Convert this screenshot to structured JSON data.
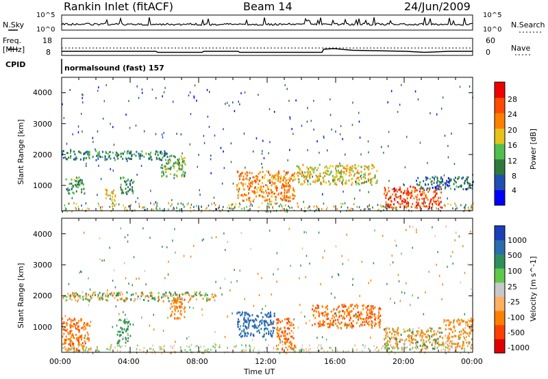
{
  "header": {
    "station": "Rankin Inlet (fitACF)",
    "beam": "Beam 14",
    "date": "24/Jun/2009"
  },
  "panels": {
    "counts": {
      "left_label": "N.Sky",
      "right_label": "N.Search",
      "left_ticks": [
        "10^5",
        "10^0"
      ],
      "right_ticks": [
        "10^5",
        "10^0"
      ]
    },
    "freq": {
      "left_label_1": "Freq.",
      "left_label_2": "[MHz]",
      "right_label": "Nave",
      "left_ticks": [
        "18",
        "8"
      ],
      "right_ticks": [
        "60",
        "0"
      ]
    },
    "cpid": {
      "label": "CPID",
      "value": "normalsound (fast) 157"
    }
  },
  "x_axis": {
    "label": "Time UT",
    "ticks": [
      "00:00",
      "04:00",
      "08:00",
      "12:00",
      "16:00",
      "20:00",
      "00:00"
    ]
  },
  "power_panel": {
    "ylabel": "Slant Range [km]",
    "yticks": [
      "4000",
      "3000",
      "2000",
      "1000"
    ],
    "colorbar_label": "Power [dB]",
    "colorbar_ticks": [
      "28",
      "24",
      "20",
      "16",
      "12",
      "8",
      "4"
    ],
    "colors": [
      "#0000ff",
      "#1f4fb0",
      "#2f7a3a",
      "#4fbf4f",
      "#e6c21a",
      "#ff8000",
      "#ff4a00",
      "#ee0000"
    ]
  },
  "velocity_panel": {
    "ylabel": "Slant Range [km]",
    "yticks": [
      "4000",
      "3000",
      "2000",
      "1000"
    ],
    "colorbar_label": "Velocity [m s^-1]",
    "colorbar_ticks": [
      "1000",
      "500",
      "100",
      "25",
      "-25",
      "-100",
      "-500",
      "-1000"
    ],
    "colors": [
      "#1b3fb8",
      "#2a6db0",
      "#2f8f5a",
      "#5fc94a",
      "#c8c8c8",
      "#ffb060",
      "#ff8000",
      "#ff4000",
      "#e00000"
    ]
  },
  "chart_data": {
    "type": "heatmap",
    "xlabel": "Time UT",
    "ylabel": "Slant Range [km]",
    "xlim_hours": [
      0,
      24
    ],
    "ylim_km": [
      180,
      4500
    ],
    "power_regions": [
      {
        "t0": 0.0,
        "t1": 6.3,
        "r0": 1850,
        "r1": 2150,
        "power_db": 10
      },
      {
        "t0": 0.2,
        "t1": 1.3,
        "r0": 750,
        "r1": 1300,
        "power_db": 12
      },
      {
        "t0": 2.5,
        "t1": 3.1,
        "r0": 500,
        "r1": 900,
        "power_db": 20
      },
      {
        "t0": 3.4,
        "t1": 4.2,
        "r0": 750,
        "r1": 1300,
        "power_db": 10
      },
      {
        "t0": 5.8,
        "t1": 7.2,
        "r0": 1300,
        "r1": 2000,
        "power_db": 14
      },
      {
        "t0": 10.2,
        "t1": 13.6,
        "r0": 500,
        "r1": 1500,
        "power_db": 22
      },
      {
        "t0": 13.6,
        "t1": 18.4,
        "r0": 1050,
        "r1": 1700,
        "power_db": 18
      },
      {
        "t0": 18.8,
        "t1": 22.2,
        "r0": 300,
        "r1": 1000,
        "power_db": 26
      },
      {
        "t0": 20.6,
        "t1": 24.0,
        "r0": 900,
        "r1": 1300,
        "power_db": 8
      }
    ],
    "velocity_regions": [
      {
        "t0": 0.0,
        "t1": 9.0,
        "r0": 1850,
        "r1": 2150,
        "velocity": 0
      },
      {
        "t0": 0.0,
        "t1": 1.6,
        "r0": 250,
        "r1": 1300,
        "velocity": -400
      },
      {
        "t0": 3.2,
        "t1": 4.0,
        "r0": 500,
        "r1": 1300,
        "velocity": 200
      },
      {
        "t0": 6.3,
        "t1": 7.2,
        "r0": 1300,
        "r1": 2000,
        "velocity": -300
      },
      {
        "t0": 10.2,
        "t1": 12.4,
        "r0": 700,
        "r1": 1500,
        "velocity": 800
      },
      {
        "t0": 12.5,
        "t1": 13.6,
        "r0": 300,
        "r1": 1300,
        "velocity": -500
      },
      {
        "t0": 14.6,
        "t1": 18.6,
        "r0": 1000,
        "r1": 1750,
        "velocity": -400
      },
      {
        "t0": 18.8,
        "t1": 22.2,
        "r0": 300,
        "r1": 1000,
        "velocity": -60
      },
      {
        "t0": 22.2,
        "t1": 24.0,
        "r0": 300,
        "r1": 1300,
        "velocity": -200
      }
    ],
    "frequency_mhz": [
      {
        "t": 0,
        "v": 10.4
      },
      {
        "t": 5.5,
        "v": 10.4
      },
      {
        "t": 5.6,
        "v": 9.8
      },
      {
        "t": 8.2,
        "v": 9.8
      },
      {
        "t": 8.3,
        "v": 10.4
      },
      {
        "t": 10.3,
        "v": 10.4
      },
      {
        "t": 10.4,
        "v": 9.8
      },
      {
        "t": 15.2,
        "v": 9.8
      },
      {
        "t": 15.3,
        "v": 11.6
      },
      {
        "t": 15.9,
        "v": 12.0
      },
      {
        "t": 17.0,
        "v": 11.0
      },
      {
        "t": 20.1,
        "v": 10.4
      },
      {
        "t": 21.2,
        "v": 9.8
      },
      {
        "t": 22.6,
        "v": 10.4
      },
      {
        "t": 24.0,
        "v": 10.4
      }
    ],
    "nave_dotted_level": 26
  }
}
